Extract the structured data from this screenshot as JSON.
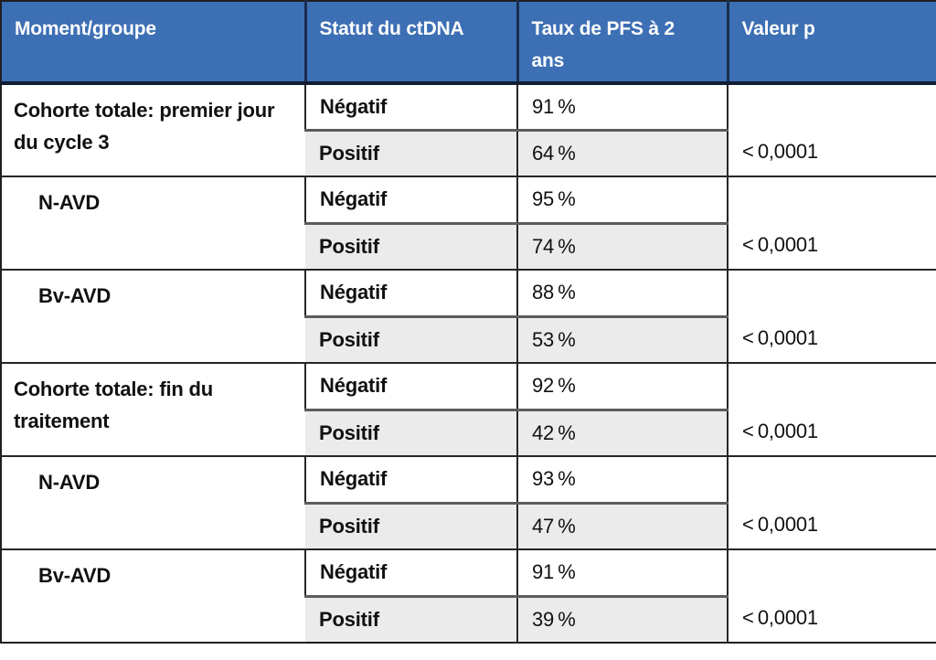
{
  "colors": {
    "header_bg": "#3D6FB4",
    "header_text": "#ffffff",
    "header_divider": "#1b2d4f",
    "header_underline": "#101d33",
    "grid_line": "#262626",
    "subrow_divider": "#5c5c5c",
    "alt_row_bg": "#EBEBEB",
    "body_text": "#111111"
  },
  "table": {
    "headers": [
      "Moment/groupe",
      "Statut du ctDNA",
      "Taux de PFS à 2 ans",
      "Valeur p"
    ],
    "groups": [
      {
        "moment": "Cohorte totale: premier jour du cycle 3",
        "level": 0,
        "negatif": {
          "statut": "Négatif",
          "taux": "91 %"
        },
        "positif": {
          "statut": "Positif",
          "taux": "64 %"
        },
        "valeur_p": "< 0,0001"
      },
      {
        "moment": "N-AVD",
        "level": 1,
        "negatif": {
          "statut": "Négatif",
          "taux": "95 %"
        },
        "positif": {
          "statut": "Positif",
          "taux": "74 %"
        },
        "valeur_p": "< 0,0001"
      },
      {
        "moment": "Bv-AVD",
        "level": 1,
        "negatif": {
          "statut": "Négatif",
          "taux": "88 %"
        },
        "positif": {
          "statut": "Positif",
          "taux": "53 %"
        },
        "valeur_p": "< 0,0001"
      },
      {
        "moment": "Cohorte totale: fin du traitement",
        "level": 0,
        "negatif": {
          "statut": "Négatif",
          "taux": "92 %"
        },
        "positif": {
          "statut": "Positif",
          "taux": "42 %"
        },
        "valeur_p": "< 0,0001"
      },
      {
        "moment": "N-AVD",
        "level": 1,
        "negatif": {
          "statut": "Négatif",
          "taux": "93 %"
        },
        "positif": {
          "statut": "Positif",
          "taux": "47 %"
        },
        "valeur_p": "< 0,0001"
      },
      {
        "moment": "Bv-AVD",
        "level": 1,
        "negatif": {
          "statut": "Négatif",
          "taux": "91 %"
        },
        "positif": {
          "statut": "Positif",
          "taux": "39 %"
        },
        "valeur_p": "< 0,0001"
      }
    ]
  }
}
